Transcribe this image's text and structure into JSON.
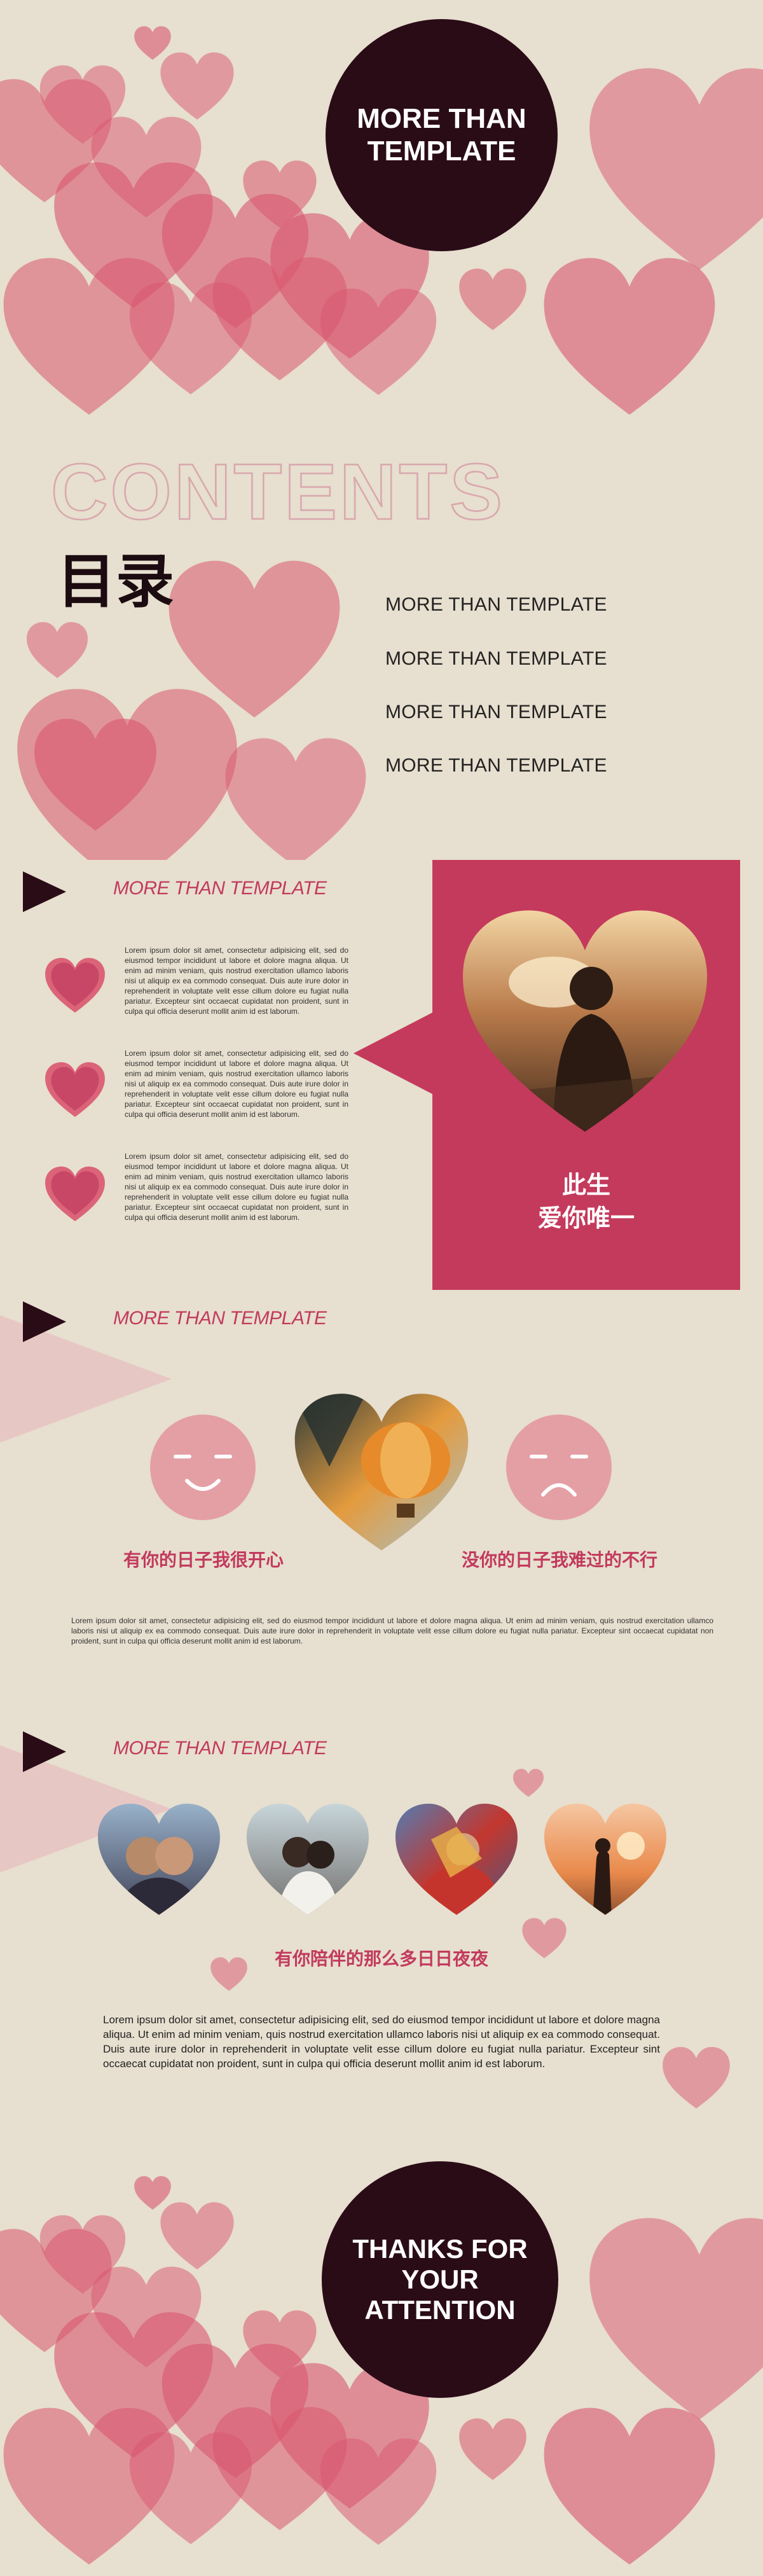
{
  "cover": {
    "title": "MORE THAN\nTEMPLATE"
  },
  "contents": {
    "heading": "CONTENTS",
    "subheading": "目录",
    "items": [
      "MORE THAN TEMPLATE",
      "MORE THAN TEMPLATE",
      "MORE THAN TEMPLATE",
      "MORE THAN TEMPLATE"
    ]
  },
  "section1": {
    "title": "MORE THAN TEMPLATE",
    "paragraphs": [
      "Lorem ipsum dolor sit amet, consectetur adipisicing elit, sed do eiusmod tempor incididunt ut labore et dolore magna aliqua. Ut enim ad minim veniam, quis nostrud exercitation ullamco laboris nisi ut aliquip ex ea commodo consequat. Duis aute irure dolor in reprehenderit in voluptate velit esse cillum dolore eu fugiat nulla pariatur. Excepteur sint occaecat cupidatat non proident, sunt in culpa qui officia deserunt mollit anim id est laborum.",
      "Lorem ipsum dolor sit amet, consectetur adipisicing elit, sed do eiusmod tempor incididunt ut labore et dolore magna aliqua. Ut enim ad minim veniam, quis nostrud exercitation ullamco laboris nisi ut aliquip ex ea commodo consequat. Duis aute irure dolor in reprehenderit in voluptate velit esse cillum dolore eu fugiat nulla pariatur. Excepteur sint occaecat cupidatat non proident, sunt in culpa qui officia deserunt mollit anim id est laborum.",
      "Lorem ipsum dolor sit amet, consectetur adipisicing elit, sed do eiusmod tempor incididunt ut labore et dolore magna aliqua. Ut enim ad minim veniam, quis nostrud exercitation ullamco laboris nisi ut aliquip ex ea commodo consequat. Duis aute irure dolor in reprehenderit in voluptate velit esse cillum dolore eu fugiat nulla pariatur. Excepteur sint occaecat cupidatat non proident, sunt in culpa qui officia deserunt mollit anim id est laborum."
    ],
    "card_text_line1": "此生",
    "card_text_line2": "爱你唯一"
  },
  "section2": {
    "title": "MORE THAN TEMPLATE",
    "happy_caption": "有你的日子我很开心",
    "sad_caption": "没你的日子我难过的不行",
    "paragraph": "Lorem ipsum dolor sit amet, consectetur adipisicing elit, sed do eiusmod tempor incididunt ut labore et dolore magna aliqua. Ut enim ad minim veniam, quis nostrud exercitation ullamco laboris nisi ut aliquip ex ea commodo consequat. Duis aute irure dolor in reprehenderit in voluptate velit esse cillum dolore eu fugiat nulla pariatur. Excepteur sint occaecat cupidatat non proident, sunt in culpa qui officia deserunt mollit anim id est laborum."
  },
  "section3": {
    "title": "MORE THAN TEMPLATE",
    "caption": "有你陪伴的那么多日日夜夜",
    "paragraph": "Lorem ipsum dolor sit amet, consectetur adipisicing elit, sed do eiusmod tempor incididunt ut labore et dolore magna aliqua. Ut enim ad minim veniam, quis nostrud exercitation ullamco laboris nisi ut aliquip ex ea commodo consequat. Duis aute irure dolor in reprehenderit in voluptate velit esse cillum dolore eu fugiat nulla pariatur. Excepteur sint occaecat cupidatat non proident, sunt in culpa qui officia deserunt mollit anim id est laborum."
  },
  "closing": {
    "title": "THANKS FOR\nYOUR\nATTENTION"
  },
  "colors": {
    "background": "#e7dfcf",
    "accent": "#c23a5e",
    "dark": "#2a0c17",
    "heart": "#d9566f"
  }
}
